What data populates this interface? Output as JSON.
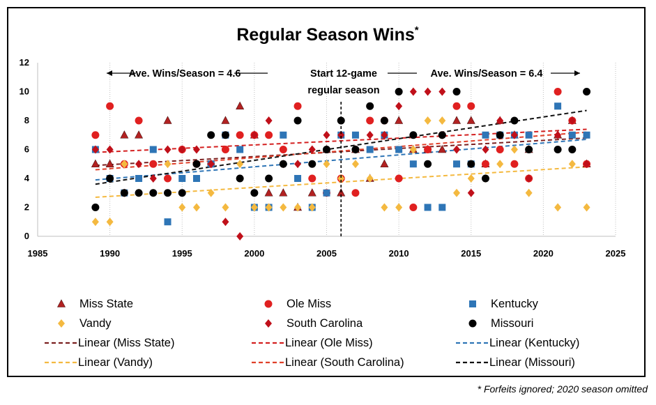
{
  "chart_data": {
    "type": "scatter",
    "title": "Regular Season Wins",
    "title_marker": "*",
    "xlim": [
      1985,
      2025
    ],
    "ylim": [
      0,
      12
    ],
    "xticks": [
      1985,
      1990,
      1995,
      2000,
      2005,
      2010,
      2015,
      2020,
      2025
    ],
    "yticks": [
      0,
      2,
      4,
      6,
      8,
      10,
      12
    ],
    "grid": "vertical-dotted",
    "legend_placement": "bottom",
    "annotations": {
      "left_avg": "Ave. Wins/Season = 4.6",
      "middle_line1": "Start 12-game",
      "middle_line2": "regular season",
      "right_avg": "Ave. Wins/Season = 6.4",
      "vline_x": 2006
    },
    "footnote": "* Forfeits ignored; 2020 season omitted",
    "series": [
      {
        "name": "Miss State",
        "marker": "triangle",
        "color": "#b22222",
        "x": [
          1989,
          1990,
          1991,
          1992,
          1994,
          1997,
          1998,
          1999,
          2000,
          2001,
          2002,
          2003,
          2004,
          2005,
          2006,
          2007,
          2008,
          2009,
          2010,
          2011,
          2012,
          2013,
          2014,
          2015,
          2016,
          2017,
          2018,
          2019,
          2021,
          2022,
          2023
        ],
        "y": [
          5,
          5,
          7,
          7,
          8,
          5,
          8,
          9,
          7,
          3,
          3,
          2,
          3,
          6,
          3,
          6,
          4,
          5,
          8,
          6,
          6,
          6,
          8,
          8,
          5,
          8,
          7,
          6,
          7,
          8,
          5
        ],
        "trend": {
          "name": "Linear (Miss State)",
          "color": "#7b2020",
          "start": 4.9,
          "end": 6.8
        }
      },
      {
        "name": "Ole Miss",
        "marker": "circle",
        "color": "#e02020",
        "x": [
          1989,
          1990,
          1991,
          1992,
          1993,
          1994,
          1995,
          1996,
          1997,
          1998,
          1999,
          2000,
          2001,
          2002,
          2003,
          2004,
          2005,
          2006,
          2007,
          2008,
          2009,
          2010,
          2011,
          2012,
          2013,
          2014,
          2015,
          2016,
          2017,
          2018,
          2019,
          2021,
          2022,
          2023
        ],
        "y": [
          7,
          9,
          5,
          8,
          5,
          4,
          6,
          5,
          5,
          6,
          7,
          7,
          7,
          6,
          9,
          4,
          3,
          4,
          3,
          8,
          8,
          4,
          2,
          6,
          7,
          9,
          9,
          5,
          6,
          5,
          4,
          10,
          8,
          5
        ],
        "trend": {
          "name": "Linear (Ole Miss)",
          "color": "#d42020",
          "start": 5.8,
          "end": 7.4
        }
      },
      {
        "name": "Kentucky",
        "marker": "square",
        "color": "#2e75b6",
        "x": [
          1989,
          1990,
          1991,
          1992,
          1993,
          1994,
          1995,
          1996,
          1997,
          1998,
          1999,
          2000,
          2001,
          2002,
          2003,
          2004,
          2005,
          2006,
          2007,
          2008,
          2009,
          2010,
          2011,
          2012,
          2013,
          2014,
          2015,
          2016,
          2017,
          2018,
          2019,
          2021,
          2022,
          2023
        ],
        "y": [
          6,
          4,
          3,
          4,
          6,
          1,
          4,
          4,
          5,
          7,
          6,
          2,
          2,
          7,
          4,
          2,
          3,
          7,
          7,
          6,
          7,
          6,
          5,
          2,
          2,
          5,
          5,
          7,
          7,
          7,
          7,
          9,
          7,
          7
        ],
        "trend": {
          "name": "Linear (Kentucky)",
          "color": "#2e75b6",
          "start": 3.9,
          "end": 6.7
        }
      },
      {
        "name": "Vandy",
        "marker": "diamond",
        "color": "#f4b940",
        "x": [
          1989,
          1990,
          1991,
          1992,
          1993,
          1994,
          1995,
          1996,
          1997,
          1998,
          1999,
          2000,
          2001,
          2002,
          2003,
          2004,
          2005,
          2006,
          2007,
          2008,
          2009,
          2010,
          2011,
          2012,
          2013,
          2014,
          2015,
          2016,
          2017,
          2018,
          2019,
          2021,
          2022,
          2023
        ],
        "y": [
          1,
          1,
          5,
          3,
          3,
          5,
          2,
          2,
          3,
          2,
          5,
          2,
          2,
          2,
          2,
          2,
          5,
          4,
          5,
          4,
          2,
          2,
          6,
          8,
          8,
          3,
          4,
          4,
          5,
          6,
          3,
          2,
          5,
          2
        ],
        "trend": {
          "name": "Linear (Vandy)",
          "color": "#f4b940",
          "start": 2.7,
          "end": 4.8
        }
      },
      {
        "name": "South Carolina",
        "marker": "diamond",
        "color": "#c0101a",
        "x": [
          1989,
          1990,
          1991,
          1992,
          1993,
          1994,
          1995,
          1996,
          1997,
          1998,
          1999,
          2000,
          2001,
          2002,
          2003,
          2004,
          2005,
          2006,
          2007,
          2008,
          2009,
          2010,
          2011,
          2012,
          2013,
          2014,
          2015,
          2016,
          2017,
          2018,
          2019,
          2021,
          2022,
          2023
        ],
        "y": [
          6,
          6,
          3,
          5,
          4,
          6,
          6,
          6,
          5,
          1,
          0,
          7,
          8,
          5,
          5,
          6,
          7,
          7,
          6,
          7,
          7,
          9,
          10,
          10,
          10,
          6,
          3,
          6,
          8,
          7,
          4,
          7,
          8,
          5
        ],
        "trend": {
          "name": "Linear (South Carolina)",
          "color": "#e0402a",
          "start": 4.6,
          "end": 7.2
        }
      },
      {
        "name": "Missouri",
        "marker": "circle",
        "color": "#000000",
        "x": [
          1989,
          1990,
          1991,
          1992,
          1993,
          1994,
          1995,
          1996,
          1997,
          1998,
          1999,
          2000,
          2001,
          2002,
          2003,
          2004,
          2005,
          2006,
          2007,
          2008,
          2009,
          2010,
          2011,
          2012,
          2013,
          2014,
          2015,
          2016,
          2017,
          2018,
          2019,
          2021,
          2022,
          2023
        ],
        "y": [
          2,
          4,
          3,
          3,
          3,
          3,
          3,
          5,
          7,
          7,
          4,
          3,
          4,
          5,
          8,
          5,
          6,
          8,
          6,
          9,
          8,
          10,
          7,
          5,
          7,
          10,
          5,
          4,
          7,
          8,
          6,
          6,
          6,
          10
        ],
        "trend": {
          "name": "Linear (Missouri)",
          "color": "#111111",
          "start": 3.6,
          "end": 8.7
        }
      }
    ]
  }
}
